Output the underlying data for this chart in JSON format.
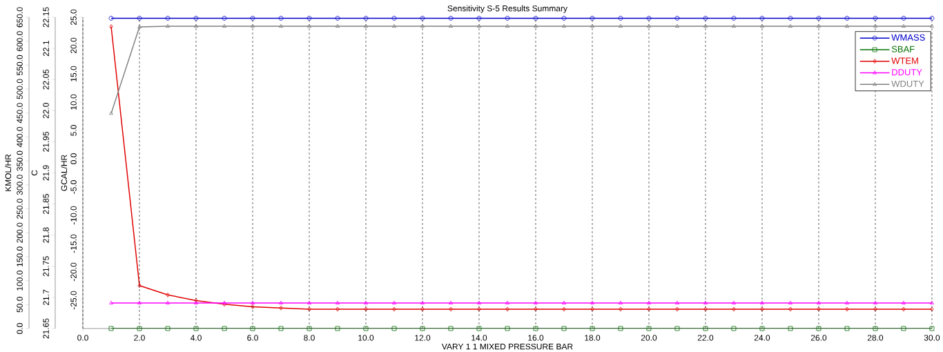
{
  "chart_data": {
    "type": "line",
    "title": "Sensitivity S-5 Results Summary",
    "xlabel": "VARY   1 1 MIXED PRESSURE  BAR",
    "ylabel": "GCAL/HR",
    "y2label": "C",
    "y3label": "KMOL/HR",
    "x": [
      1,
      2,
      3,
      4,
      5,
      6,
      7,
      8,
      9,
      10,
      11,
      12,
      13,
      14,
      15,
      16,
      17,
      18,
      19,
      20,
      21,
      22,
      23,
      24,
      25,
      26,
      27,
      28,
      29,
      30
    ],
    "series": [
      {
        "name": "WMASS",
        "color": "#0000cc",
        "marker": "circle",
        "axis": "y3",
        "values": [
          648,
          648,
          648,
          648,
          648,
          648,
          648,
          648,
          648,
          648,
          648,
          648,
          648,
          648,
          648,
          648,
          648,
          648,
          648,
          648,
          648,
          648,
          648,
          648,
          648,
          648,
          648,
          648,
          648,
          648
        ]
      },
      {
        "name": "SBAF",
        "color": "#007000",
        "marker": "square",
        "axis": "y3",
        "values": [
          0,
          0,
          0,
          0,
          0,
          0,
          0,
          0,
          0,
          0,
          0,
          0,
          0,
          0,
          0,
          0,
          0,
          0,
          0,
          0,
          0,
          0,
          0,
          0,
          0,
          0,
          0,
          0,
          0,
          0
        ]
      },
      {
        "name": "WTEM",
        "color": "#e00000",
        "marker": "diamond",
        "axis": "y2",
        "values": [
          22.135,
          21.719,
          21.704,
          21.695,
          21.689,
          21.685,
          21.683,
          21.681,
          21.681,
          21.681,
          21.681,
          21.681,
          21.681,
          21.681,
          21.681,
          21.681,
          21.681,
          21.681,
          21.681,
          21.681,
          21.681,
          21.681,
          21.681,
          21.681,
          21.681,
          21.681,
          21.681,
          21.681,
          21.681,
          21.681
        ]
      },
      {
        "name": "DDUTY",
        "color": "#ff00ff",
        "marker": "triangle",
        "axis": "y",
        "values": [
          -25.5,
          -25.5,
          -25.5,
          -25.5,
          -25.5,
          -25.5,
          -25.5,
          -25.5,
          -25.5,
          -25.5,
          -25.5,
          -25.5,
          -25.5,
          -25.5,
          -25.5,
          -25.5,
          -25.5,
          -25.5,
          -25.5,
          -25.5,
          -25.5,
          -25.5,
          -25.5,
          -25.5,
          -25.5,
          -25.5,
          -25.5,
          -25.5,
          -25.5,
          -25.5
        ]
      },
      {
        "name": "WDUTY",
        "color": "#808080",
        "marker": "triangle",
        "axis": "y",
        "values": [
          8.0,
          23.3,
          23.4,
          23.4,
          23.4,
          23.4,
          23.4,
          23.4,
          23.4,
          23.4,
          23.4,
          23.4,
          23.4,
          23.4,
          23.4,
          23.4,
          23.4,
          23.4,
          23.4,
          23.4,
          23.4,
          23.4,
          23.4,
          23.4,
          23.4,
          23.4,
          23.4,
          23.4,
          23.4,
          23.4
        ]
      }
    ],
    "xlim": [
      0,
      30
    ],
    "xticks": [
      {
        "value": 0,
        "label": "0.0"
      },
      {
        "value": 2,
        "label": "2.0"
      },
      {
        "value": 4,
        "label": "4.0"
      },
      {
        "value": 6,
        "label": "6.0"
      },
      {
        "value": 8,
        "label": "8.0"
      },
      {
        "value": 10,
        "label": "10.0"
      },
      {
        "value": 12,
        "label": "12.0"
      },
      {
        "value": 14,
        "label": "14.0"
      },
      {
        "value": 16,
        "label": "16.0"
      },
      {
        "value": 18,
        "label": "18.0"
      },
      {
        "value": 20,
        "label": "20.0"
      },
      {
        "value": 22,
        "label": "22.0"
      },
      {
        "value": 24,
        "label": "24.0"
      },
      {
        "value": 26,
        "label": "26.0"
      },
      {
        "value": 28,
        "label": "28.0"
      },
      {
        "value": 30,
        "label": "30.0"
      }
    ],
    "ylim": [
      -30,
      25
    ],
    "yticks": [
      {
        "value": -25,
        "label": "-25.0"
      },
      {
        "value": -20,
        "label": "-20.0"
      },
      {
        "value": -15,
        "label": "-15.0"
      },
      {
        "value": -10,
        "label": "-10.0"
      },
      {
        "value": -5,
        "label": "-5.0"
      },
      {
        "value": 0,
        "label": "0.0"
      },
      {
        "value": 5,
        "label": "5.0"
      },
      {
        "value": 10,
        "label": "10.0"
      },
      {
        "value": 15,
        "label": "15.0"
      },
      {
        "value": 20,
        "label": "20.0"
      },
      {
        "value": 25,
        "label": "25.0"
      }
    ],
    "y2lim": [
      21.65,
      22.15
    ],
    "y2ticks": [
      21.65,
      {
        "value": 21.7,
        "label": "21.7"
      },
      21.75,
      {
        "value": 21.8,
        "label": "21.8"
      },
      21.85,
      {
        "value": 21.9,
        "label": "21.9"
      },
      21.95,
      {
        "value": 22.0,
        "label": "22.0"
      },
      22.05,
      {
        "value": 22.1,
        "label": "22.1"
      },
      22.15
    ],
    "y3lim": [
      0,
      650
    ],
    "y3ticks": [
      {
        "value": 0,
        "label": "0.0"
      },
      {
        "value": 50,
        "label": "50.0"
      },
      {
        "value": 100,
        "label": "100.0"
      },
      {
        "value": 150,
        "label": "150.0"
      },
      {
        "value": 200,
        "label": "200.0"
      },
      {
        "value": 250,
        "label": "250.0"
      },
      {
        "value": 300,
        "label": "300.0"
      },
      {
        "value": 350,
        "label": "350.0"
      },
      {
        "value": 400,
        "label": "400.0"
      },
      {
        "value": 450,
        "label": "450.0"
      },
      {
        "value": 500,
        "label": "500.0"
      },
      {
        "value": 550,
        "label": "550.0"
      },
      {
        "value": 600,
        "label": "600.0"
      },
      {
        "value": 650,
        "label": "650.0"
      }
    ],
    "grid": "x",
    "legend": "top right"
  }
}
